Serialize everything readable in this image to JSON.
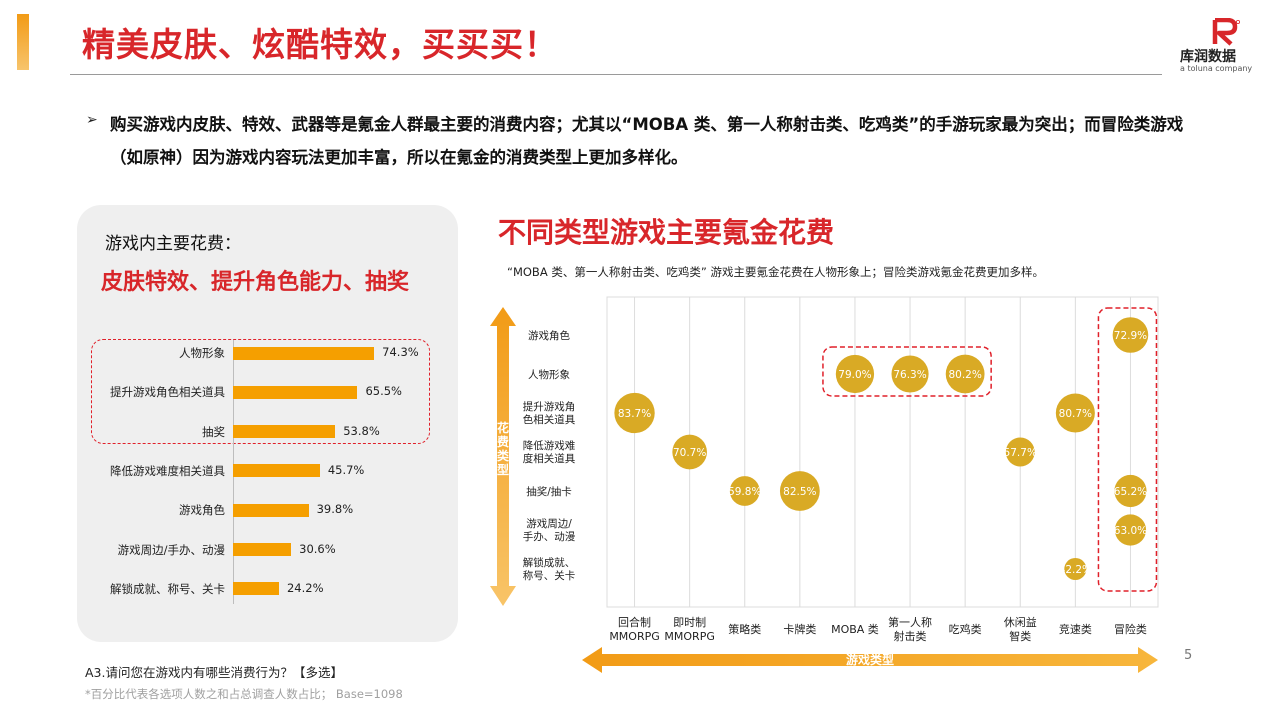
{
  "header": {
    "title": "精美皮肤、炫酷特效，买买买！",
    "logo_name": "库润数据",
    "logo_sub": "a toluna company"
  },
  "bullet": {
    "text": "购买游戏内皮肤、特效、武器等是氪金人群最主要的消费内容；尤其以“MOBA 类、第一人称射击类、吃鸡类”的手游玩家最为突出；而冒险类游戏（如原神）因为游戏内容玩法更加丰富，所以在氪金的消费类型上更加多样化。"
  },
  "left_panel": {
    "heading": "游戏内主要花费：",
    "highlight": "皮肤特效、提升角色能力、抽奖"
  },
  "question": "A3.请问您在游戏内有哪些消费行为？【多选】",
  "footnote": "*百分比代表各选项人数之和占总调查人数占比； Base=1098",
  "page_number": "5",
  "colors": {
    "accent_red": "#d8262a",
    "bar_orange": "#f59f00",
    "bubble_gold": "#d9aa25",
    "arrow_orange": "#f29b16"
  },
  "chart_data": [
    {
      "type": "bar",
      "orientation": "horizontal",
      "categories": [
        "人物形象",
        "提升游戏角色相关道具",
        "抽奖",
        "降低游戏难度相关道具",
        "游戏角色",
        "游戏周边/手办、动漫",
        "解锁成就、称号、关卡"
      ],
      "values": [
        74.3,
        65.5,
        53.8,
        45.7,
        39.8,
        30.6,
        24.2
      ],
      "value_labels": [
        "74.3%",
        "65.5%",
        "53.8%",
        "45.7%",
        "39.8%",
        "30.6%",
        "24.2%"
      ],
      "highlighted_categories": [
        "人物形象",
        "提升游戏角色相关道具",
        "抽奖"
      ],
      "xlim": [
        0,
        100
      ]
    },
    {
      "type": "scatter",
      "style": "bubble",
      "title": "不同类型游戏主要氪金花费",
      "subtitle": "“MOBA 类、第一人称射击类、吃鸡类” 游戏主要氪金花费在人物形象上；冒险类游戏氪金花费更加多样。",
      "xlabel": "游戏类型",
      "ylabel": "花费类型",
      "x_categories": [
        "回合制\nMMORPG",
        "即时制\nMMORPG",
        "策略类",
        "卡牌类",
        "MOBA 类",
        "第一人称\n射击类",
        "吃鸡类",
        "休闲益\n智类",
        "竞速类",
        "冒险类"
      ],
      "y_categories": [
        "游戏角色",
        "人物形象",
        "提升游戏角\n色相关道具",
        "降低游戏难\n度相关道具",
        "抽奖/抽卡",
        "游戏周边/\n手办、动漫",
        "解锁成就、\n称号、关卡"
      ],
      "points": [
        {
          "x": 0,
          "y": 2,
          "value": 83.7,
          "label": "83.7%"
        },
        {
          "x": 1,
          "y": 3,
          "value": 70.7,
          "label": "70.7%"
        },
        {
          "x": 2,
          "y": 4,
          "value": 59.8,
          "label": "59.8%"
        },
        {
          "x": 3,
          "y": 4,
          "value": 82.5,
          "label": "82.5%"
        },
        {
          "x": 4,
          "y": 1,
          "value": 79.0,
          "label": "79.0%"
        },
        {
          "x": 5,
          "y": 1,
          "value": 76.3,
          "label": "76.3%"
        },
        {
          "x": 6,
          "y": 1,
          "value": 80.2,
          "label": "80.2%"
        },
        {
          "x": 7,
          "y": 3,
          "value": 57.7,
          "label": "57.7%"
        },
        {
          "x": 8,
          "y": 2,
          "value": 80.7,
          "label": "80.7%"
        },
        {
          "x": 8,
          "y": 6,
          "value": 42.2,
          "label": "42.2%"
        },
        {
          "x": 9,
          "y": 0,
          "value": 72.9,
          "label": "72.9%"
        },
        {
          "x": 9,
          "y": 4,
          "value": 65.2,
          "label": "65.2%"
        },
        {
          "x": 9,
          "y": 5,
          "value": 63.0,
          "label": "63.0%"
        }
      ],
      "highlight_groups": [
        {
          "x_from": 4,
          "x_to": 6,
          "y_from": 1,
          "y_to": 1
        },
        {
          "x_from": 9,
          "x_to": 9,
          "y_from": 0,
          "y_to": 6
        }
      ],
      "grid": true
    }
  ]
}
